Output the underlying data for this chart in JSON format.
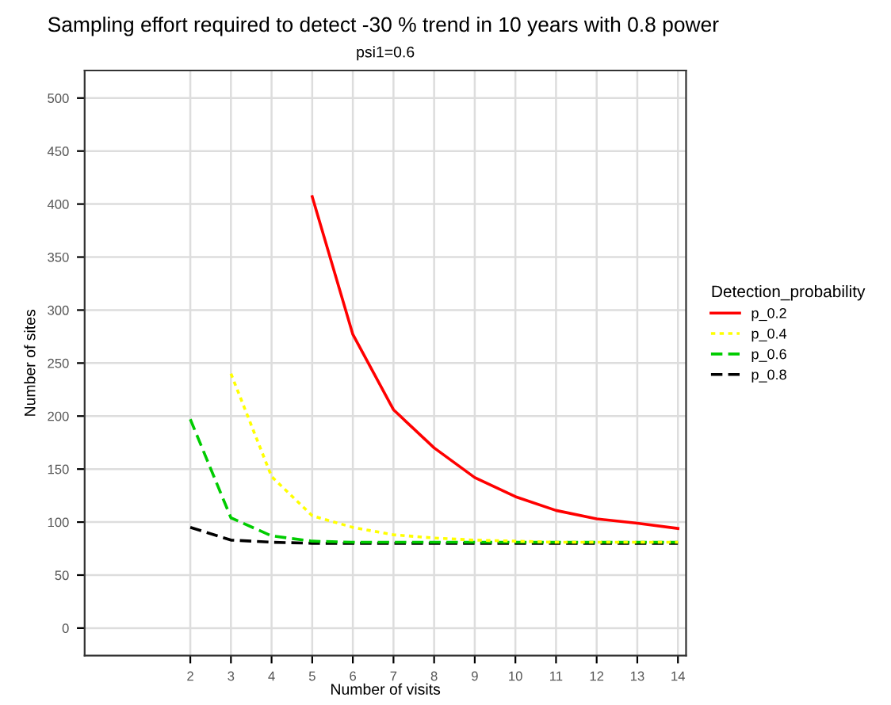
{
  "chart_data": {
    "type": "line",
    "title": "Sampling effort required to detect -30 % trend in 10 years with 0.8 power",
    "subtitle": "psi1=0.6",
    "xlabel": "Number of visits",
    "ylabel": "Number of sites",
    "legend_title": "Detection_probability",
    "legend": "right",
    "grid": true,
    "xlim": [
      -0.6,
      14.2
    ],
    "xticks": [
      2,
      3,
      4,
      5,
      6,
      7,
      8,
      9,
      10,
      11,
      12,
      13,
      14
    ],
    "ylim": [
      -26,
      526
    ],
    "yticks": [
      0,
      50,
      100,
      150,
      200,
      250,
      300,
      350,
      400,
      450,
      500
    ],
    "series": [
      {
        "name": "p_0.2",
        "color": "#ff0000",
        "line_style": "solid",
        "x": [
          5,
          6,
          7,
          8,
          9,
          10,
          11,
          12,
          13,
          14
        ],
        "values": [
          407,
          277,
          206,
          170,
          142,
          124,
          111,
          103,
          99,
          94
        ]
      },
      {
        "name": "p_0.4",
        "color": "#ffff00",
        "line_style": "dotted",
        "x": [
          3,
          4,
          5,
          6,
          7,
          8,
          9,
          10,
          11,
          12,
          13,
          14
        ],
        "values": [
          240,
          143,
          106,
          95,
          88,
          85,
          83,
          82,
          81,
          81,
          81,
          81
        ]
      },
      {
        "name": "p_0.6",
        "color": "#00cc00",
        "line_style": "dashed",
        "x": [
          2,
          3,
          4,
          5,
          6,
          7,
          8,
          9,
          10,
          11,
          12,
          13,
          14
        ],
        "values": [
          197,
          104,
          87,
          82,
          81,
          81,
          81,
          81,
          81,
          81,
          81,
          81,
          81
        ]
      },
      {
        "name": "p_0.8",
        "color": "#000000",
        "line_style": "dashed",
        "x": [
          2,
          3,
          4,
          5,
          6,
          7,
          8,
          9,
          10,
          11,
          12,
          13,
          14
        ],
        "values": [
          95,
          83,
          81,
          80,
          80,
          80,
          80,
          80,
          80,
          80,
          80,
          80,
          80
        ]
      }
    ]
  }
}
